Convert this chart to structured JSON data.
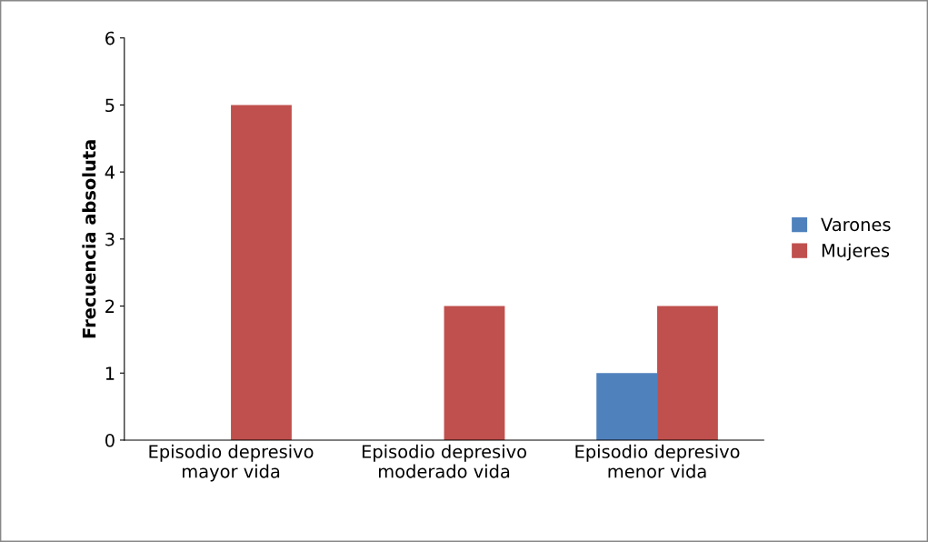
{
  "chart_data": {
    "type": "bar",
    "ylabel": "Frecuencia absoluta",
    "categories": [
      "Episodio depresivo\nmayor vida",
      "Episodio depresivo\nmoderado vida",
      "Episodio depresivo\nmenor vida"
    ],
    "series": [
      {
        "name": "Varones",
        "color": "#4f81bd",
        "values": [
          0,
          0,
          1
        ]
      },
      {
        "name": "Mujeres",
        "color": "#c0504d",
        "values": [
          5,
          2,
          2
        ]
      }
    ],
    "ylim": [
      0,
      6
    ],
    "yticks": [
      0,
      1,
      2,
      3,
      4,
      5,
      6
    ],
    "grid": false,
    "legend": "right"
  }
}
